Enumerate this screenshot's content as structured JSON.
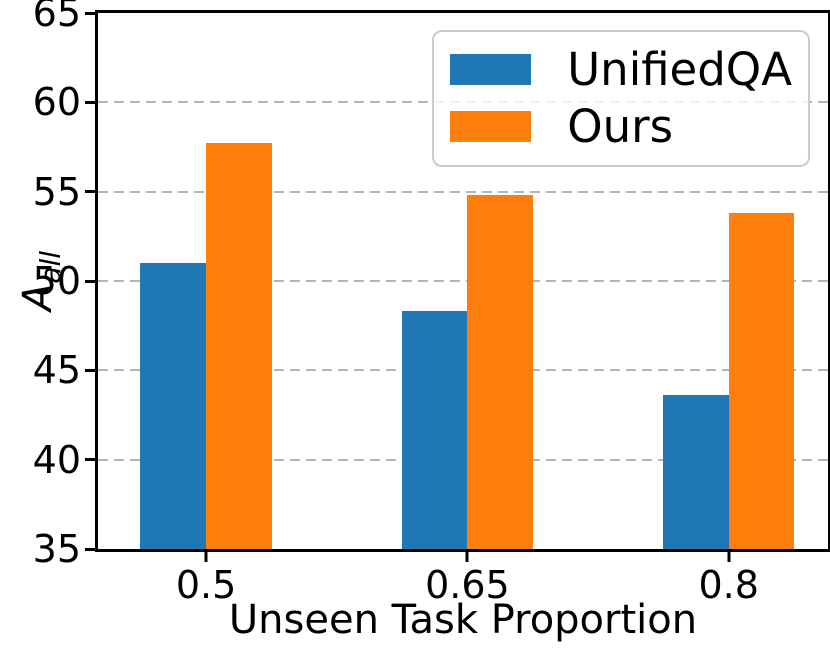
{
  "chart_data": {
    "type": "bar",
    "title": "",
    "categories": [
      "0.5",
      "0.65",
      "0.8"
    ],
    "series": [
      {
        "name": "UnifiedQA",
        "color": "#1f77b4",
        "values": [
          51.0,
          48.3,
          43.6
        ]
      },
      {
        "name": "Ours",
        "color": "#ff7f0e",
        "values": [
          57.7,
          54.8,
          53.8
        ]
      }
    ],
    "xlabel": "Unseen Task Proportion",
    "ylabel": {
      "base": "A",
      "subscript": "all"
    },
    "ylim": [
      35,
      65
    ],
    "yticks": [
      35,
      40,
      45,
      50,
      55,
      60,
      65
    ],
    "grid": {
      "axis": "y",
      "style": "dashed",
      "color": "#b4b4b4",
      "on": true
    },
    "legend": {
      "position": "upper-right"
    }
  }
}
